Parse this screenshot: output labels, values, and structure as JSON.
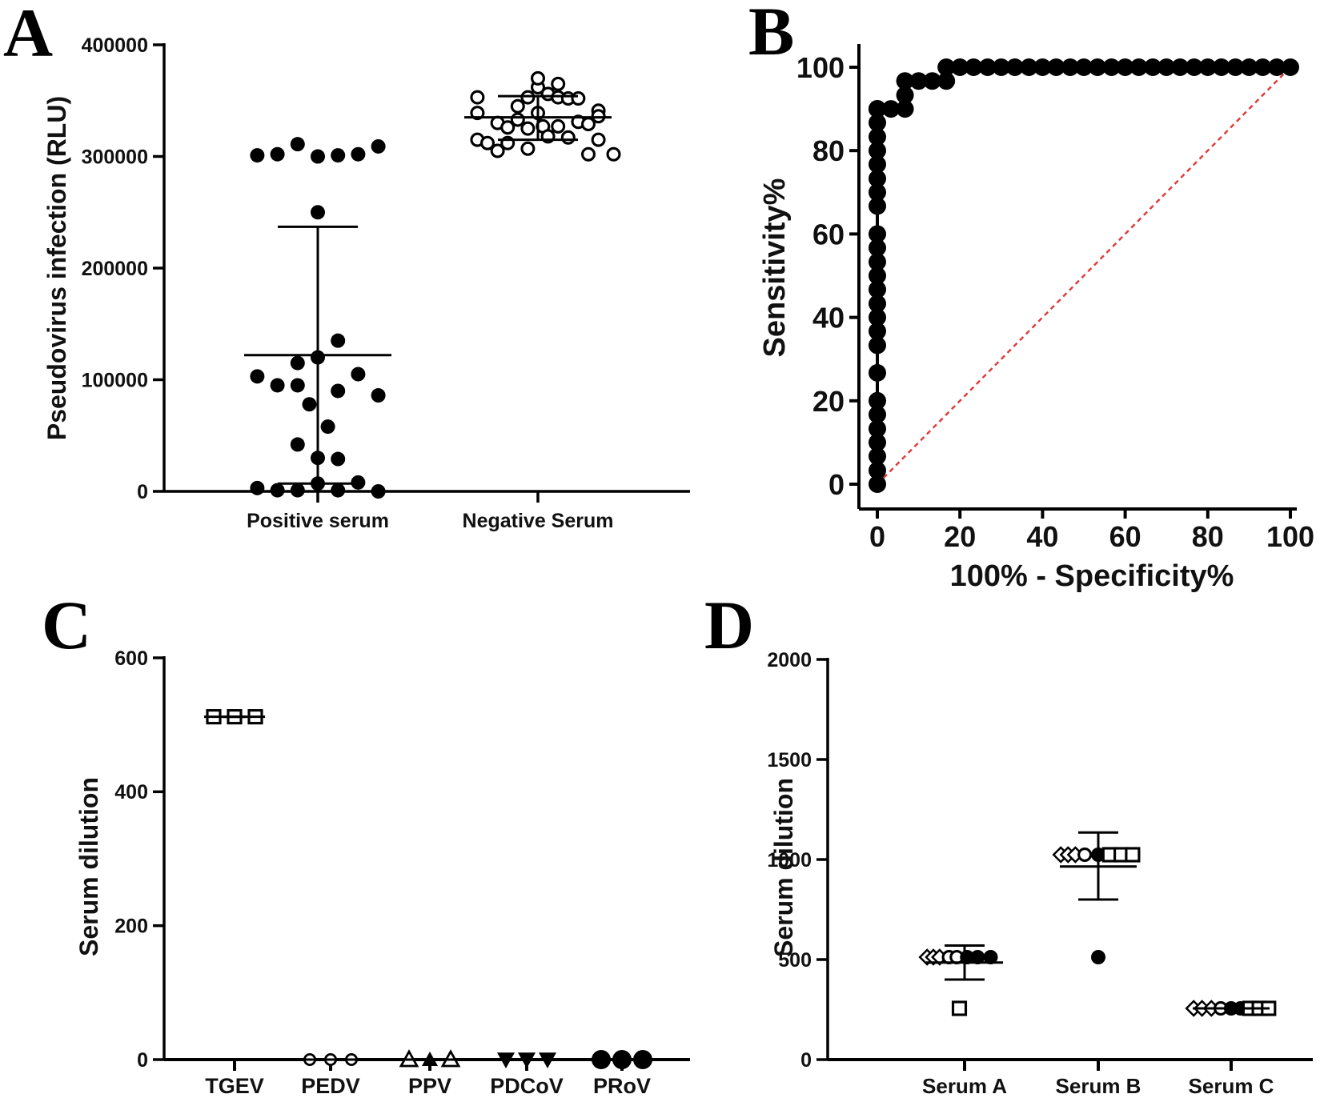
{
  "figure_labels": [
    "A",
    "B",
    "C",
    "D"
  ],
  "chart_data": [
    {
      "panel": "A",
      "type": "scatter",
      "subtype": "dot-plot-with-mean-sd",
      "title": "",
      "xlabel": "",
      "ylabel": "Pseudovirus infection (RLU)",
      "ylim": [
        0,
        400000
      ],
      "yticks": [
        0,
        100000,
        200000,
        300000,
        400000
      ],
      "ytick_labels": [
        "0",
        "100000",
        "200000",
        "300000",
        "400000"
      ],
      "categories": [
        "Positive serum",
        "Negative Serum"
      ],
      "series": [
        {
          "name": "Positive serum",
          "marker": "filled-circle",
          "mean": 122000,
          "sd_low": 7000,
          "sd_high": 237000,
          "points": [
            {
              "jitter": -0.72,
              "y": 301000
            },
            {
              "jitter": -0.48,
              "y": 302000
            },
            {
              "jitter": -0.24,
              "y": 311000
            },
            {
              "jitter": 0.0,
              "y": 300000
            },
            {
              "jitter": 0.24,
              "y": 301000
            },
            {
              "jitter": 0.48,
              "y": 302000
            },
            {
              "jitter": 0.72,
              "y": 309000
            },
            {
              "jitter": 0.0,
              "y": 250000
            },
            {
              "jitter": -0.72,
              "y": 103000
            },
            {
              "jitter": -0.48,
              "y": 95000
            },
            {
              "jitter": -0.24,
              "y": 115000
            },
            {
              "jitter": 0.0,
              "y": 120000
            },
            {
              "jitter": -0.24,
              "y": 95000
            },
            {
              "jitter": 0.24,
              "y": 135000
            },
            {
              "jitter": 0.24,
              "y": 90000
            },
            {
              "jitter": 0.48,
              "y": 105000
            },
            {
              "jitter": 0.72,
              "y": 86000
            },
            {
              "jitter": -0.1,
              "y": 78000
            },
            {
              "jitter": 0.12,
              "y": 58000
            },
            {
              "jitter": -0.24,
              "y": 42000
            },
            {
              "jitter": 0.0,
              "y": 30000
            },
            {
              "jitter": 0.24,
              "y": 29000
            },
            {
              "jitter": -0.72,
              "y": 3000
            },
            {
              "jitter": -0.48,
              "y": 1000
            },
            {
              "jitter": -0.24,
              "y": 1000
            },
            {
              "jitter": 0.0,
              "y": 7000
            },
            {
              "jitter": 0.24,
              "y": 1000
            },
            {
              "jitter": 0.48,
              "y": 8000
            },
            {
              "jitter": 0.72,
              "y": 0
            }
          ]
        },
        {
          "name": "Negative Serum",
          "marker": "open-circle",
          "mean": 335000,
          "sd_low": 315000,
          "sd_high": 354000,
          "points": [
            {
              "jitter": -0.72,
              "y": 353000
            },
            {
              "jitter": -0.72,
              "y": 339000
            },
            {
              "jitter": -0.72,
              "y": 315000
            },
            {
              "jitter": -0.6,
              "y": 312000
            },
            {
              "jitter": -0.48,
              "y": 305000
            },
            {
              "jitter": -0.48,
              "y": 330000
            },
            {
              "jitter": -0.36,
              "y": 326000
            },
            {
              "jitter": -0.36,
              "y": 312000
            },
            {
              "jitter": -0.24,
              "y": 333000
            },
            {
              "jitter": -0.24,
              "y": 345000
            },
            {
              "jitter": -0.12,
              "y": 325000
            },
            {
              "jitter": -0.12,
              "y": 353000
            },
            {
              "jitter": -0.12,
              "y": 307000
            },
            {
              "jitter": 0.0,
              "y": 362000
            },
            {
              "jitter": 0.0,
              "y": 370000
            },
            {
              "jitter": 0.0,
              "y": 339000
            },
            {
              "jitter": 0.06,
              "y": 327000
            },
            {
              "jitter": 0.12,
              "y": 356000
            },
            {
              "jitter": 0.12,
              "y": 318000
            },
            {
              "jitter": 0.24,
              "y": 353000
            },
            {
              "jitter": 0.24,
              "y": 365000
            },
            {
              "jitter": 0.24,
              "y": 327000
            },
            {
              "jitter": 0.36,
              "y": 352000
            },
            {
              "jitter": 0.36,
              "y": 317000
            },
            {
              "jitter": 0.48,
              "y": 331000
            },
            {
              "jitter": 0.48,
              "y": 352000
            },
            {
              "jitter": 0.6,
              "y": 329000
            },
            {
              "jitter": 0.6,
              "y": 302000
            },
            {
              "jitter": 0.72,
              "y": 341000
            },
            {
              "jitter": 0.72,
              "y": 315000
            },
            {
              "jitter": 0.72,
              "y": 336000
            },
            {
              "jitter": 0.9,
              "y": 302000
            }
          ]
        }
      ]
    },
    {
      "panel": "B",
      "type": "line",
      "subtype": "roc-curve",
      "title": "",
      "xlabel": "100% - Specificity%",
      "ylabel": "Sensitivity%",
      "xlim": [
        0,
        100
      ],
      "ylim": [
        0,
        100
      ],
      "xticks": [
        0,
        20,
        40,
        60,
        80,
        100
      ],
      "xtick_labels": [
        "0",
        "20",
        "40",
        "60",
        "80",
        "100"
      ],
      "yticks": [
        0,
        20,
        40,
        60,
        80,
        100
      ],
      "ytick_labels": [
        "0",
        "20",
        "40",
        "60",
        "80",
        "100"
      ],
      "series": [
        {
          "name": "ROC",
          "marker": "filled-circle",
          "x": [
            0,
            0,
            0,
            0,
            0,
            0,
            0,
            0,
            0,
            0,
            0,
            0,
            0,
            0,
            0,
            0,
            0,
            0,
            0,
            0,
            0,
            0,
            0,
            0,
            0,
            0,
            0,
            0,
            3.3,
            6.7,
            6.7,
            6.7,
            10,
            13.3,
            16.7,
            16.7,
            20,
            23.3,
            26.7,
            30,
            33.3,
            36.7,
            40,
            43.3,
            46.7,
            50,
            53.3,
            56.7,
            60,
            63.3,
            66.7,
            70,
            73.3,
            76.7,
            80,
            83.3,
            86.7,
            90,
            93.3,
            96.7,
            100
          ],
          "y": [
            0,
            3.3,
            6.7,
            10,
            13.3,
            16.7,
            20,
            26.7,
            33.3,
            36.7,
            40,
            43.3,
            46.7,
            50,
            53.3,
            56.7,
            60,
            66.7,
            70,
            73.3,
            76.7,
            80,
            83.3,
            86.7,
            90,
            90,
            90,
            90,
            90,
            90,
            93.3,
            96.7,
            96.7,
            96.7,
            96.7,
            100,
            100,
            100,
            100,
            100,
            100,
            100,
            100,
            100,
            100,
            100,
            100,
            100,
            100,
            100,
            100,
            100,
            100,
            100,
            100,
            100,
            100,
            100,
            100,
            100,
            100
          ]
        },
        {
          "name": "Reference",
          "style": "dashed",
          "color": "#e03c3c",
          "x": [
            0,
            100
          ],
          "y": [
            0,
            100
          ]
        }
      ]
    },
    {
      "panel": "C",
      "type": "scatter",
      "subtype": "dot-plot-with-mean-sd",
      "title": "",
      "xlabel": "",
      "ylabel": "Serum dilution",
      "ylim": [
        0,
        600
      ],
      "yticks": [
        0,
        200,
        400,
        600
      ],
      "ytick_labels": [
        "0",
        "200",
        "400",
        "600"
      ],
      "categories": [
        "TGEV",
        "PEDV",
        "PPV",
        "PDCoV",
        "PRoV"
      ],
      "series": [
        {
          "name": "TGEV",
          "marker": "open-square",
          "values": [
            512,
            512,
            512
          ],
          "mean": 512,
          "sd_low": 512,
          "sd_high": 512
        },
        {
          "name": "PEDV",
          "marker": "open-circle",
          "values": [
            0,
            0,
            0
          ],
          "mean": 0,
          "sd_low": 0,
          "sd_high": 0
        },
        {
          "name": "PPV",
          "marker": "mixed-triangle",
          "values": [
            0,
            0,
            0
          ],
          "mean": 0,
          "sd_low": 0,
          "sd_high": 0
        },
        {
          "name": "PDCoV",
          "marker": "filled-down-triangle",
          "values": [
            0,
            0,
            0
          ],
          "mean": 0,
          "sd_low": 0,
          "sd_high": 0
        },
        {
          "name": "PRoV",
          "marker": "filled-circle",
          "values": [
            0,
            0,
            0
          ],
          "mean": 0,
          "sd_low": 0,
          "sd_high": 0
        }
      ]
    },
    {
      "panel": "D",
      "type": "scatter",
      "subtype": "dot-plot-with-mean-sd",
      "title": "",
      "xlabel": "",
      "ylabel": "Serum dilution",
      "ylim": [
        0,
        2000
      ],
      "yticks": [
        0,
        500,
        1000,
        1500,
        2000
      ],
      "ytick_labels": [
        "0",
        "500",
        "1000",
        "1500",
        "2000"
      ],
      "categories": [
        "Serum A",
        "Serum B",
        "Serum C"
      ],
      "series": [
        {
          "name": "Serum A",
          "mean": 485,
          "sd_low": 400,
          "sd_high": 570,
          "points": [
            {
              "jitter": -0.72,
              "y": 512,
              "marker": "open-diamond"
            },
            {
              "jitter": -0.6,
              "y": 512,
              "marker": "open-diamond"
            },
            {
              "jitter": -0.48,
              "y": 512,
              "marker": "open-diamond"
            },
            {
              "jitter": -0.3,
              "y": 512,
              "marker": "open-circle"
            },
            {
              "jitter": -0.15,
              "y": 512,
              "marker": "open-circle"
            },
            {
              "jitter": 0.05,
              "y": 512,
              "marker": "filled-circle"
            },
            {
              "jitter": 0.25,
              "y": 512,
              "marker": "filled-circle"
            },
            {
              "jitter": 0.5,
              "y": 512,
              "marker": "filled-circle"
            },
            {
              "jitter": -0.1,
              "y": 256,
              "marker": "open-square"
            }
          ]
        },
        {
          "name": "Serum B",
          "mean": 965,
          "sd_low": 800,
          "sd_high": 1135,
          "points": [
            {
              "jitter": -0.72,
              "y": 1024,
              "marker": "open-diamond"
            },
            {
              "jitter": -0.58,
              "y": 1024,
              "marker": "open-diamond"
            },
            {
              "jitter": -0.44,
              "y": 1024,
              "marker": "open-diamond"
            },
            {
              "jitter": -0.26,
              "y": 1024,
              "marker": "open-circle"
            },
            {
              "jitter": 0.0,
              "y": 1024,
              "marker": "filled-circle"
            },
            {
              "jitter": 0.22,
              "y": 1024,
              "marker": "open-square"
            },
            {
              "jitter": 0.44,
              "y": 1024,
              "marker": "open-square"
            },
            {
              "jitter": 0.66,
              "y": 1024,
              "marker": "open-square"
            },
            {
              "jitter": 0.0,
              "y": 512,
              "marker": "filled-circle"
            }
          ]
        },
        {
          "name": "Serum C",
          "mean": 256,
          "sd_low": 256,
          "sd_high": 256,
          "points": [
            {
              "jitter": -0.72,
              "y": 256,
              "marker": "open-diamond"
            },
            {
              "jitter": -0.56,
              "y": 256,
              "marker": "open-diamond"
            },
            {
              "jitter": -0.38,
              "y": 256,
              "marker": "open-diamond"
            },
            {
              "jitter": -0.2,
              "y": 256,
              "marker": "open-circle"
            },
            {
              "jitter": 0.0,
              "y": 256,
              "marker": "filled-circle"
            },
            {
              "jitter": 0.18,
              "y": 256,
              "marker": "filled-circle"
            },
            {
              "jitter": 0.36,
              "y": 256,
              "marker": "open-square"
            },
            {
              "jitter": 0.54,
              "y": 256,
              "marker": "open-square"
            },
            {
              "jitter": 0.72,
              "y": 256,
              "marker": "open-square"
            }
          ]
        }
      ]
    }
  ]
}
